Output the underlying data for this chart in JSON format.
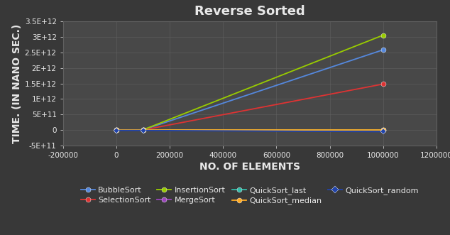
{
  "title": "Reverse Sorted",
  "xlabel": "NO. OF ELEMENTS",
  "ylabel": "TIME. (IN NANO SEC.)",
  "background_color": "#383838",
  "plot_bg_color": "#484848",
  "grid_color": "#606060",
  "text_color": "#e8e8e8",
  "xlim": [
    -200000,
    1200000
  ],
  "ylim": [
    -500000000000.0,
    3500000000000.0
  ],
  "series": [
    {
      "label": "BubbleSort",
      "x": [
        0,
        100000,
        1000000
      ],
      "y": [
        5000000000.0,
        10000000000.0,
        2580000000000.0
      ],
      "color": "#5588dd",
      "marker": "o",
      "markersize": 5
    },
    {
      "label": "SelectionSort",
      "x": [
        0,
        100000,
        1000000
      ],
      "y": [
        5000000000.0,
        5000000000.0,
        1480000000000.0
      ],
      "color": "#dd3333",
      "marker": "o",
      "markersize": 5
    },
    {
      "label": "InsertionSort",
      "x": [
        0,
        100000,
        1000000
      ],
      "y": [
        5000000000.0,
        10000000000.0,
        3050000000000.0
      ],
      "color": "#99cc00",
      "marker": "o",
      "markersize": 5
    },
    {
      "label": "MergeSort",
      "x": [
        0,
        100000,
        1000000
      ],
      "y": [
        0,
        0,
        0
      ],
      "color": "#9944bb",
      "marker": "o",
      "markersize": 5
    },
    {
      "label": "QuickSort_last",
      "x": [
        0,
        100000,
        1000000
      ],
      "y": [
        0,
        0,
        0
      ],
      "color": "#33bbaa",
      "marker": "o",
      "markersize": 5
    },
    {
      "label": "QuickSort_median",
      "x": [
        0,
        100000,
        1000000
      ],
      "y": [
        0,
        0,
        0
      ],
      "color": "#ffaa22",
      "marker": "o",
      "markersize": 5
    },
    {
      "label": "QuickSort_random",
      "x": [
        0,
        100000,
        1000000
      ],
      "y": [
        -10000000000.0,
        -10000000000.0,
        -50000000000.0
      ],
      "color": "#2244aa",
      "marker": "D",
      "markersize": 4
    }
  ],
  "xticks": [
    -200000,
    0,
    200000,
    400000,
    600000,
    800000,
    1000000,
    1200000
  ],
  "yticks_vals": [
    -500000000000.0,
    0,
    500000000000.0,
    1000000000000.0,
    1500000000000.0,
    2000000000000.0,
    2500000000000.0,
    3000000000000.0,
    3500000000000.0
  ],
  "yticks_labels": [
    "-5E+11",
    "0",
    "5E+11",
    "1E+12",
    "1.5E+12",
    "2E+12",
    "2.5E+12",
    "3E+12",
    "3.5E+12"
  ],
  "title_fontsize": 13,
  "axis_label_fontsize": 10,
  "tick_fontsize": 7.5,
  "legend_fontsize": 8,
  "legend_entries_row1": [
    "BubbleSort",
    "SelectionSort",
    "InsertionSort",
    "MergeSort"
  ],
  "legend_entries_row2": [
    "QuickSort_last",
    "QuickSort_median",
    "QuickSort_random"
  ]
}
